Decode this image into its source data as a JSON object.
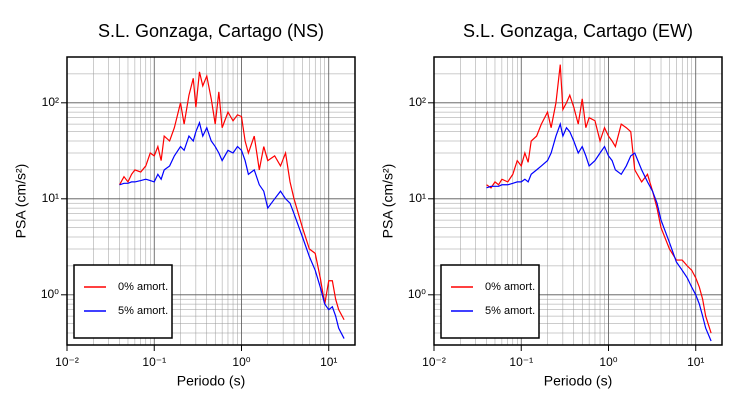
{
  "chart_data": [
    {
      "type": "line",
      "title": "S.L. Gonzaga, Cartago (NS)",
      "x_label": "Periodo (s)",
      "y_label": "PSA (cm/s²)",
      "log_x": true,
      "log_y": true,
      "grid": true,
      "legend": "lower left",
      "xlim": [
        0.01,
        20
      ],
      "ylim": [
        0.3,
        300
      ],
      "xticks": [
        {
          "value": 0.01,
          "label": "10⁻²"
        },
        {
          "value": 0.1,
          "label": "10⁻¹"
        },
        {
          "value": 1,
          "label": "10⁰"
        },
        {
          "value": 10,
          "label": "10¹"
        }
      ],
      "yticks": [
        {
          "value": 1,
          "label": "10⁰"
        },
        {
          "value": 10,
          "label": "10¹"
        },
        {
          "value": 100,
          "label": "10²"
        }
      ],
      "x": [
        0.04,
        0.045,
        0.05,
        0.055,
        0.06,
        0.07,
        0.08,
        0.09,
        0.1,
        0.11,
        0.12,
        0.13,
        0.15,
        0.17,
        0.2,
        0.22,
        0.25,
        0.28,
        0.3,
        0.33,
        0.36,
        0.4,
        0.45,
        0.5,
        0.55,
        0.6,
        0.7,
        0.8,
        0.9,
        1.0,
        1.1,
        1.2,
        1.4,
        1.6,
        1.8,
        2.0,
        2.4,
        2.8,
        3.2,
        3.6,
        4,
        5,
        6,
        7,
        8,
        9,
        10,
        11,
        12,
        13,
        15
      ],
      "series": [
        {
          "name": "0% amort.",
          "color": "#ff0000",
          "values": [
            14,
            17,
            15,
            18,
            20,
            19,
            22,
            30,
            28,
            35,
            25,
            45,
            40,
            55,
            100,
            60,
            120,
            180,
            90,
            210,
            150,
            190,
            110,
            60,
            130,
            55,
            80,
            65,
            75,
            72,
            40,
            30,
            45,
            20,
            35,
            25,
            28,
            22,
            30,
            15,
            10,
            5,
            3,
            2.7,
            1.5,
            0.8,
            1.4,
            1.4,
            0.9,
            0.7,
            0.55
          ]
        },
        {
          "name": "5% amort.",
          "color": "#0000ff",
          "values": [
            14,
            14.5,
            14.5,
            15,
            15,
            15.5,
            16,
            15.5,
            15,
            18,
            16,
            20,
            22,
            28,
            35,
            32,
            45,
            40,
            50,
            62,
            45,
            55,
            40,
            35,
            30,
            25,
            32,
            30,
            35,
            32,
            25,
            18,
            20,
            14,
            12,
            8,
            10,
            12,
            10,
            9,
            7,
            4,
            2.5,
            1.8,
            1.2,
            0.8,
            0.7,
            0.75,
            0.6,
            0.45,
            0.35
          ]
        }
      ]
    },
    {
      "type": "line",
      "title": "S.L. Gonzaga, Cartago (EW)",
      "x_label": "Periodo (s)",
      "y_label": "PSA (cm/s²)",
      "log_x": true,
      "log_y": true,
      "grid": true,
      "legend": "lower left",
      "xlim": [
        0.01,
        20
      ],
      "ylim": [
        0.3,
        300
      ],
      "xticks": [
        {
          "value": 0.01,
          "label": "10⁻²"
        },
        {
          "value": 0.1,
          "label": "10⁻¹"
        },
        {
          "value": 1,
          "label": "10⁰"
        },
        {
          "value": 10,
          "label": "10¹"
        }
      ],
      "yticks": [
        {
          "value": 1,
          "label": "10⁰"
        },
        {
          "value": 10,
          "label": "10¹"
        },
        {
          "value": 100,
          "label": "10²"
        }
      ],
      "x": [
        0.04,
        0.045,
        0.05,
        0.055,
        0.06,
        0.07,
        0.08,
        0.09,
        0.1,
        0.11,
        0.12,
        0.13,
        0.15,
        0.17,
        0.2,
        0.22,
        0.25,
        0.28,
        0.3,
        0.33,
        0.36,
        0.4,
        0.45,
        0.5,
        0.55,
        0.6,
        0.7,
        0.8,
        0.9,
        1.0,
        1.1,
        1.2,
        1.4,
        1.6,
        1.8,
        2.0,
        2.4,
        2.8,
        3.2,
        3.6,
        4,
        5,
        6,
        7,
        8,
        9,
        10,
        11,
        12,
        13,
        15
      ],
      "series": [
        {
          "name": "0% amort.",
          "color": "#ff0000",
          "values": [
            14,
            13,
            15,
            14,
            16,
            15,
            18,
            25,
            22,
            30,
            24,
            40,
            45,
            60,
            80,
            55,
            100,
            250,
            85,
            100,
            120,
            90,
            60,
            110,
            55,
            70,
            65,
            40,
            55,
            45,
            40,
            35,
            60,
            55,
            50,
            20,
            15,
            18,
            12,
            8,
            5,
            3,
            2.3,
            2.3,
            2,
            1.8,
            1.5,
            1.2,
            0.9,
            0.6,
            0.4
          ]
        },
        {
          "name": "5% amort.",
          "color": "#0000ff",
          "values": [
            13,
            13.5,
            13.5,
            13.5,
            14,
            14,
            14.5,
            15,
            15,
            16,
            15,
            18,
            20,
            22,
            25,
            30,
            45,
            60,
            45,
            55,
            50,
            40,
            30,
            35,
            28,
            22,
            25,
            30,
            35,
            28,
            25,
            20,
            18,
            22,
            28,
            30,
            20,
            15,
            12,
            9,
            6,
            3.5,
            2.2,
            1.8,
            1.5,
            1.2,
            1.0,
            0.8,
            0.6,
            0.45,
            0.33
          ]
        }
      ]
    }
  ]
}
